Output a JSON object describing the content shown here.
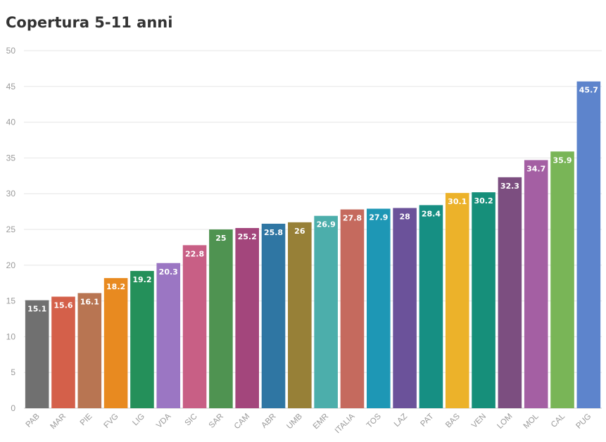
{
  "chart_data": {
    "type": "bar",
    "title": "Copertura 5-11 anni",
    "xlabel": "",
    "ylabel": "",
    "ylim": [
      0,
      50
    ],
    "yticks": [
      0,
      5,
      10,
      15,
      20,
      25,
      30,
      35,
      40,
      45,
      50
    ],
    "grid": true,
    "categories": [
      "PAB",
      "MAR",
      "PIE",
      "FVG",
      "LIG",
      "VDA",
      "SIC",
      "SAR",
      "CAM",
      "ABR",
      "UMB",
      "EMR",
      "ITALIA",
      "TOS",
      "LAZ",
      "PAT",
      "BAS",
      "VEN",
      "LOM",
      "MOL",
      "CAL",
      "PUG"
    ],
    "values": [
      15.1,
      15.6,
      16.1,
      18.2,
      19.2,
      20.3,
      22.8,
      25,
      25.2,
      25.8,
      26,
      26.9,
      27.8,
      27.9,
      28,
      28.4,
      30.1,
      30.2,
      32.3,
      34.7,
      35.9,
      45.7
    ],
    "value_labels": [
      "15.1",
      "15.6",
      "16.1",
      "18.2",
      "19.2",
      "20.3",
      "22.8",
      "25",
      "25.2",
      "25.8",
      "26",
      "26.9",
      "27.8",
      "27.9",
      "28",
      "28.4",
      "30.1",
      "30.2",
      "32.3",
      "34.7",
      "35.9",
      "45.7"
    ],
    "colors": [
      "#707070",
      "#d4604a",
      "#b87552",
      "#e88a20",
      "#24905a",
      "#9b76c3",
      "#c85f85",
      "#4f9351",
      "#a3467c",
      "#2f76a3",
      "#978037",
      "#4caeab",
      "#c56a5e",
      "#1e97b5",
      "#6b529a",
      "#168f83",
      "#ecb22a",
      "#168f7a",
      "#7c4e80",
      "#a45fa3",
      "#79b557",
      "#5d84cc"
    ]
  }
}
